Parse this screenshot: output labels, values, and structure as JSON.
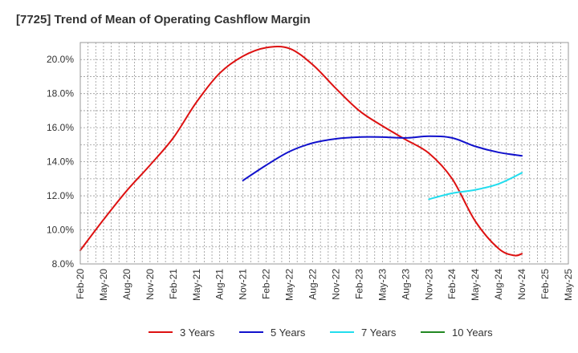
{
  "chart_data": {
    "type": "line",
    "title": "[7725]  Trend of Mean of Operating Cashflow Margin",
    "xlabel": "",
    "ylabel": "",
    "ylim": [
      8.0,
      21.0
    ],
    "y_ticks": [
      8.0,
      10.0,
      12.0,
      14.0,
      16.0,
      18.0,
      20.0
    ],
    "y_tick_labels": [
      "8.0%",
      "10.0%",
      "12.0%",
      "14.0%",
      "16.0%",
      "18.0%",
      "20.0%"
    ],
    "x_categories": [
      "Feb-20",
      "Mar-20",
      "Apr-20",
      "May-20",
      "Jun-20",
      "Jul-20",
      "Aug-20",
      "Sep-20",
      "Oct-20",
      "Nov-20",
      "Dec-20",
      "Jan-21",
      "Feb-21",
      "Mar-21",
      "Apr-21",
      "May-21",
      "Jun-21",
      "Jul-21",
      "Aug-21",
      "Sep-21",
      "Oct-21",
      "Nov-21",
      "Dec-21",
      "Jan-22",
      "Feb-22",
      "Mar-22",
      "Apr-22",
      "May-22",
      "Jun-22",
      "Jul-22",
      "Aug-22",
      "Sep-22",
      "Oct-22",
      "Nov-22",
      "Dec-22",
      "Jan-23",
      "Feb-23",
      "Mar-23",
      "Apr-23",
      "May-23",
      "Jun-23",
      "Jul-23",
      "Aug-23",
      "Sep-23",
      "Oct-23",
      "Nov-23",
      "Dec-23",
      "Jan-24",
      "Feb-24",
      "Mar-24",
      "Apr-24",
      "May-24",
      "Jun-24",
      "Jul-24",
      "Aug-24",
      "Sep-24",
      "Oct-24",
      "Nov-24",
      "Dec-24",
      "Jan-25",
      "Feb-25",
      "Mar-25",
      "Apr-25",
      "May-25"
    ],
    "x_tick_labels": [
      "Feb-20",
      "May-20",
      "Aug-20",
      "Nov-20",
      "Feb-21",
      "May-21",
      "Aug-21",
      "Nov-21",
      "Feb-22",
      "May-22",
      "Aug-22",
      "Nov-22",
      "Feb-23",
      "May-23",
      "Aug-23",
      "Nov-23",
      "Feb-24",
      "May-24",
      "Aug-24",
      "Nov-24",
      "Feb-25",
      "May-25"
    ],
    "grid": true,
    "legend_position": "bottom",
    "series": [
      {
        "name": "3 Years",
        "color": "#dd1111",
        "points": [
          [
            "Feb-20",
            8.8
          ],
          [
            "May-20",
            10.6
          ],
          [
            "Aug-20",
            12.3
          ],
          [
            "Nov-20",
            13.8
          ],
          [
            "Feb-21",
            15.4
          ],
          [
            "May-21",
            17.5
          ],
          [
            "Aug-21",
            19.2
          ],
          [
            "Nov-21",
            20.2
          ],
          [
            "Feb-22",
            20.7
          ],
          [
            "May-22",
            20.65
          ],
          [
            "Aug-22",
            19.7
          ],
          [
            "Nov-22",
            18.3
          ],
          [
            "Feb-23",
            17.0
          ],
          [
            "May-23",
            16.1
          ],
          [
            "Aug-23",
            15.3
          ],
          [
            "Nov-23",
            14.5
          ],
          [
            "Feb-24",
            13.0
          ],
          [
            "May-24",
            10.5
          ],
          [
            "Aug-24",
            8.9
          ],
          [
            "Oct-24",
            8.5
          ],
          [
            "Nov-24",
            8.6
          ]
        ]
      },
      {
        "name": "5 Years",
        "color": "#1111cc",
        "points": [
          [
            "Nov-21",
            12.9
          ],
          [
            "Feb-22",
            13.8
          ],
          [
            "May-22",
            14.6
          ],
          [
            "Aug-22",
            15.1
          ],
          [
            "Nov-22",
            15.35
          ],
          [
            "Feb-23",
            15.45
          ],
          [
            "May-23",
            15.45
          ],
          [
            "Aug-23",
            15.4
          ],
          [
            "Nov-23",
            15.5
          ],
          [
            "Feb-24",
            15.4
          ],
          [
            "May-24",
            14.9
          ],
          [
            "Aug-24",
            14.55
          ],
          [
            "Nov-24",
            14.35
          ]
        ]
      },
      {
        "name": "7 Years",
        "color": "#22ddee",
        "points": [
          [
            "Nov-23",
            11.8
          ],
          [
            "Feb-24",
            12.15
          ],
          [
            "May-24",
            12.35
          ],
          [
            "Aug-24",
            12.7
          ],
          [
            "Nov-24",
            13.35
          ]
        ]
      },
      {
        "name": "10 Years",
        "color": "#228822",
        "points": []
      }
    ]
  }
}
